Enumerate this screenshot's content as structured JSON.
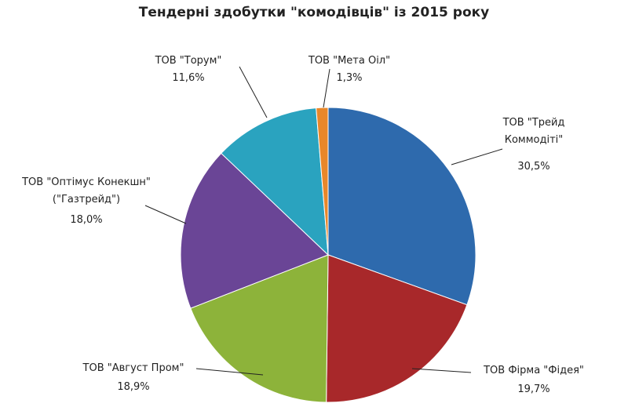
{
  "chart_data": {
    "type": "pie",
    "title": "Тендерні здобутки \"комодівців\" із 2015 року",
    "categories": [
      "ТОВ \"Трейд Коммодіті\"",
      "ТОВ Фірма \"Фідея\"",
      "ТОВ \"Август Пром\"",
      "ТОВ \"Оптімус Конекшн\" (\"Газтрейд\")",
      "ТОВ \"Торум\"",
      "ТОВ \"Мета Оіл\""
    ],
    "values": [
      30.5,
      19.7,
      18.9,
      18.0,
      11.6,
      1.3
    ],
    "value_labels": [
      "30,5%",
      "19,7%",
      "18,9%",
      "18,0%",
      "11,6%",
      "1,3%"
    ],
    "colors": [
      "#2e6aad",
      "#a8282a",
      "#8db33a",
      "#6a4596",
      "#2aa3bf",
      "#e8872a"
    ]
  }
}
